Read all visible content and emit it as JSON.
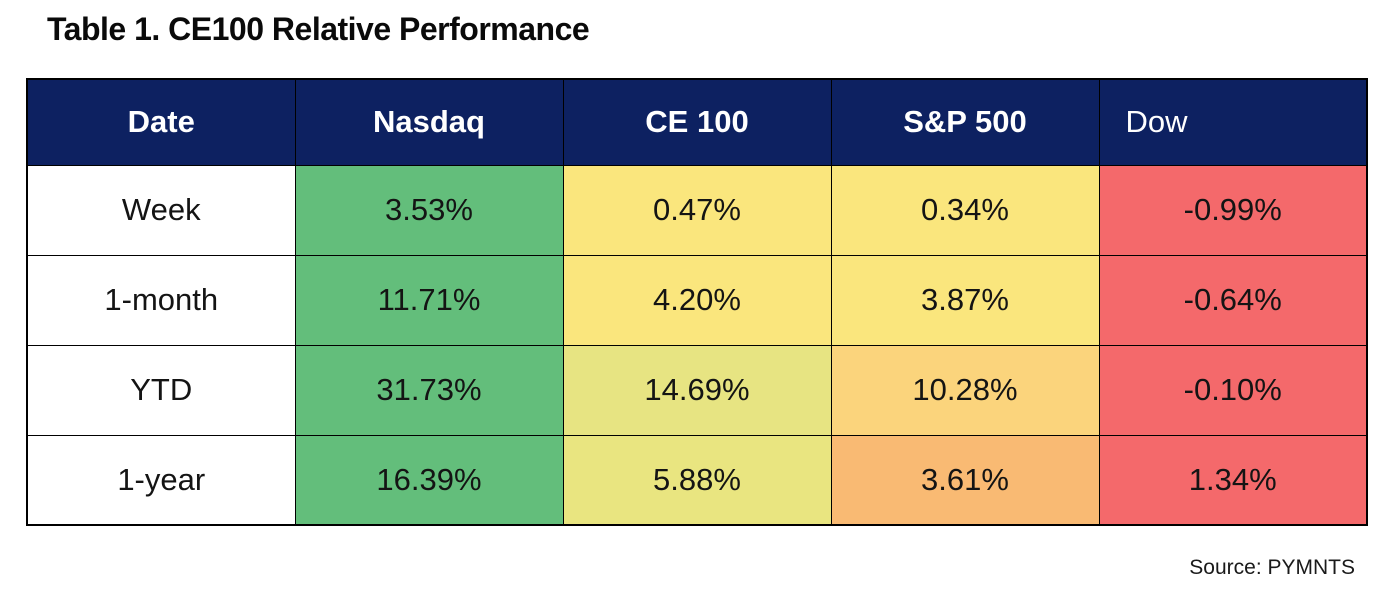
{
  "title": "Table 1. CE100 Relative Performance",
  "source": "Source: PYMNTS",
  "colors": {
    "header_bg": "#0D2161",
    "header_text": "#FFFFFF",
    "border": "#000000",
    "row_label_bg": "#FFFFFF",
    "green": "#63BE7B",
    "yellow": "#FAE67D",
    "yellow_green": "#E7E482",
    "light_orange": "#FBD47C",
    "orange": "#F9BA73",
    "red": "#F4696B"
  },
  "table": {
    "columns": [
      {
        "label": "Date"
      },
      {
        "label": "Nasdaq"
      },
      {
        "label": "CE 100"
      },
      {
        "label": "S&P 500"
      },
      {
        "label": "Dow"
      }
    ],
    "rows": [
      {
        "label": "Week",
        "cells": [
          {
            "value": "3.53%",
            "bg": "#63BE7B"
          },
          {
            "value": "0.47%",
            "bg": "#FAE67D"
          },
          {
            "value": "0.34%",
            "bg": "#FAE67D"
          },
          {
            "value": "-0.99%",
            "bg": "#F4696B"
          }
        ]
      },
      {
        "label": "1-month",
        "cells": [
          {
            "value": "11.71%",
            "bg": "#63BE7B"
          },
          {
            "value": "4.20%",
            "bg": "#FAE67D"
          },
          {
            "value": "3.87%",
            "bg": "#FAE67D"
          },
          {
            "value": "-0.64%",
            "bg": "#F4696B"
          }
        ]
      },
      {
        "label": "YTD",
        "cells": [
          {
            "value": "31.73%",
            "bg": "#63BE7B"
          },
          {
            "value": "14.69%",
            "bg": "#E7E482"
          },
          {
            "value": "10.28%",
            "bg": "#FBD47C"
          },
          {
            "value": "-0.10%",
            "bg": "#F4696B"
          }
        ]
      },
      {
        "label": "1-year",
        "cells": [
          {
            "value": "16.39%",
            "bg": "#63BE7B"
          },
          {
            "value": "5.88%",
            "bg": "#E9E580"
          },
          {
            "value": "3.61%",
            "bg": "#F9BA73"
          },
          {
            "value": "1.34%",
            "bg": "#F4696B"
          }
        ]
      }
    ]
  },
  "chart_data": {
    "type": "table",
    "title": "Table 1. CE100 Relative Performance",
    "columns": [
      "Date",
      "Nasdaq",
      "CE 100",
      "S&P 500",
      "Dow"
    ],
    "rows": [
      [
        "Week",
        3.53,
        0.47,
        0.34,
        -0.99
      ],
      [
        "1-month",
        11.71,
        4.2,
        3.87,
        -0.64
      ],
      [
        "YTD",
        31.73,
        14.69,
        10.28,
        -0.1
      ],
      [
        "1-year",
        16.39,
        5.88,
        3.61,
        1.34
      ]
    ],
    "units": "%",
    "source": "Source: PYMNTS",
    "layout_hints": "per-row red-yellow-green color scale; Nasdaq greatest (green), Dow least (red)"
  }
}
